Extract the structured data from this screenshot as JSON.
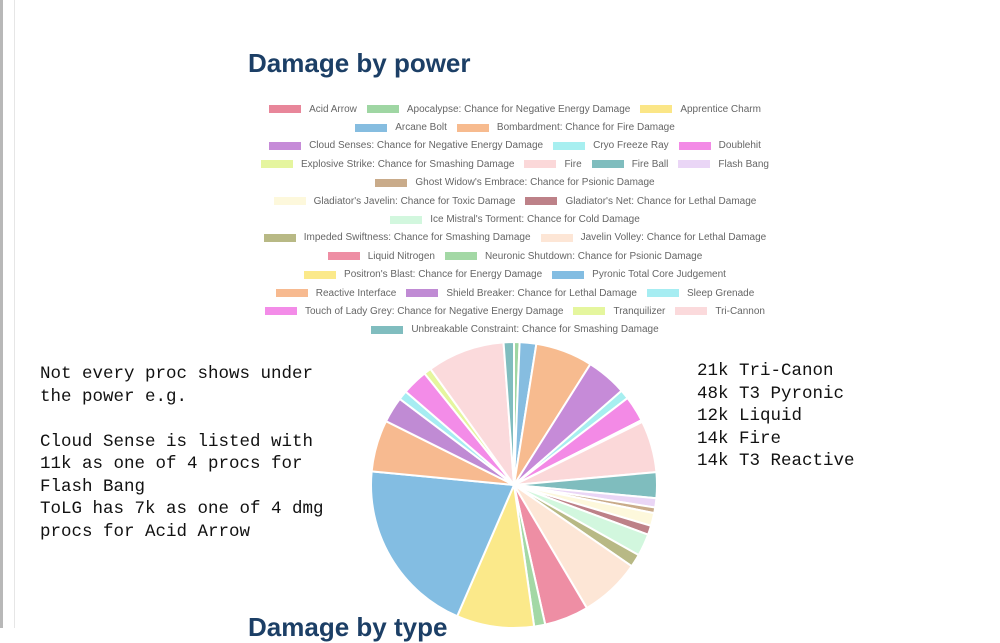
{
  "chart_data": {
    "type": "pie",
    "title": "Damage by power",
    "legend_position": "top",
    "start_angle": "top-clockwise",
    "categories": [
      "Acid Arrow",
      "Apocalypse: Chance for Negative Energy Damage",
      "Apprentice Charm",
      "Arcane Bolt",
      "Bombardment: Chance for Fire Damage",
      "Cloud Senses: Chance for Negative Energy Damage",
      "Cryo Freeze Ray",
      "Doublehit",
      "Explosive Strike: Chance for Smashing Damage",
      "Fire",
      "Fire Ball",
      "Flash Bang",
      "Ghost Widow's Embrace: Chance for Psionic Damage",
      "Gladiator's Javelin: Chance for Toxic Damage",
      "Gladiator's Net: Chance for Lethal Damage",
      "Ice Mistral's Torment: Chance for Cold Damage",
      "Impeded Swiftness: Chance for Smashing Damage",
      "Javelin Volley: Chance for Lethal Damage",
      "Liquid Nitrogen",
      "Neuronic Shutdown: Chance for Psionic Damage",
      "Positron's Blast: Chance for Energy Damage",
      "Pyronic Total Core Judgement",
      "Reactive Interface",
      "Shield Breaker: Chance for Lethal Damage",
      "Sleep Grenade",
      "Touch of Lady Grey: Chance for Negative Energy Damage",
      "Tranquilizer",
      "Tri-Cannon",
      "Unbreakable Constraint: Chance for Smashing Damage"
    ],
    "values": [
      0,
      1500,
      0,
      4500,
      15500,
      11000,
      2500,
      7000,
      500,
      14000,
      7000,
      2500,
      1500,
      3500,
      2500,
      6000,
      3500,
      16500,
      12000,
      3000,
      21000,
      48000,
      14000,
      7000,
      2500,
      7000,
      2000,
      21000,
      2800
    ],
    "colors": [
      "#e8869a",
      "#9fd6a3",
      "#fbe687",
      "#86bde0",
      "#f7bb8f",
      "#c68bd8",
      "#a7eff0",
      "#f38ae6",
      "#e5f59f",
      "#fbd8d9",
      "#7fbdbe",
      "#ead6f6",
      "#c9ab8a",
      "#fdf8dc",
      "#bd8188",
      "#d2f7de",
      "#b8b985",
      "#fde6d6",
      "#ee8ea4",
      "#a3d8a5",
      "#fbe98a",
      "#83bde2",
      "#f7ba90",
      "#c08bd4",
      "#a6edf2",
      "#f38ce8",
      "#e5f69e",
      "#fbdadc",
      "#80bdbf"
    ],
    "units": "damage"
  },
  "page": {
    "title": "Damage by power",
    "next_section_title": "Damage by type"
  },
  "annotations": {
    "left": "Not every proc shows under\nthe power e.g.\n\nCloud Sense is listed with\n11k as one of 4 procs for\nFlash Bang\nToLG has 7k as one of 4 dmg\nprocs for Acid Arrow",
    "right": "21k Tri-Canon\n48k T3 Pyronic\n12k Liquid\n14k Fire\n14k T3 Reactive"
  },
  "legend_rows": [
    [
      0,
      1,
      2
    ],
    [
      3,
      4
    ],
    [
      5,
      6,
      7
    ],
    [
      8,
      9,
      10,
      11
    ],
    [
      12
    ],
    [
      13,
      14
    ],
    [
      15
    ],
    [
      16,
      17
    ],
    [
      18,
      19
    ],
    [
      20,
      21
    ],
    [
      22,
      23,
      24
    ],
    [
      25,
      26,
      27
    ],
    [
      28
    ]
  ]
}
